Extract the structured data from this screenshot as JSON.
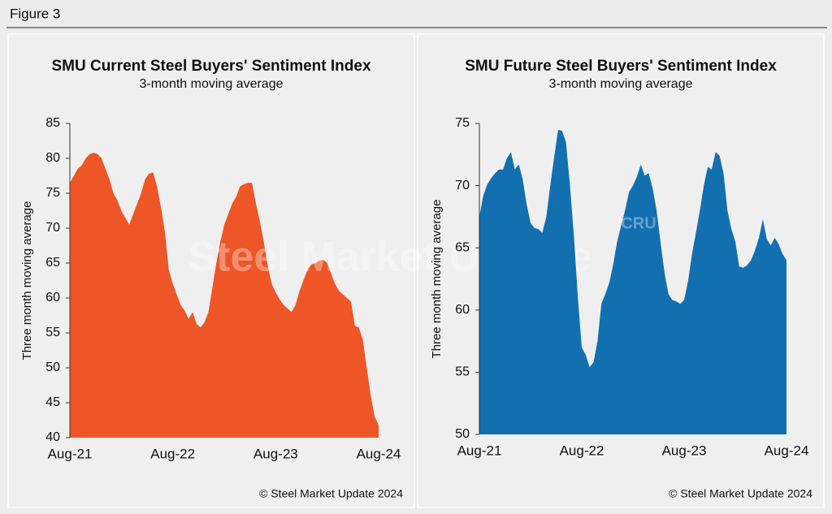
{
  "figure_label": "Figure 3",
  "chart_data": [
    {
      "type": "area",
      "title": "SMU Current Steel Buyers' Sentiment Index",
      "subtitle": "3-month moving average",
      "ylabel": "Three month moving average",
      "source": "© Steel Market Update 2024",
      "watermark": "Steel Market Update",
      "color": "#ee5527",
      "categories": [
        "Aug-21",
        null,
        null,
        null,
        null,
        null,
        null,
        null,
        null,
        null,
        null,
        null,
        null,
        null,
        null,
        null,
        null,
        null,
        null,
        null,
        null,
        null,
        null,
        null,
        null,
        null,
        "Aug-22",
        null,
        null,
        null,
        null,
        null,
        null,
        null,
        null,
        null,
        null,
        null,
        null,
        null,
        null,
        null,
        null,
        null,
        null,
        null,
        null,
        null,
        null,
        null,
        null,
        null,
        "Aug-23",
        null,
        null,
        null,
        null,
        null,
        null,
        null,
        null,
        null,
        null,
        null,
        null,
        null,
        null,
        null,
        null,
        null,
        null,
        null,
        null,
        null,
        null,
        null,
        null,
        null,
        "Aug-24"
      ],
      "values": [
        76.5,
        77.5,
        78.5,
        79,
        80,
        80.6,
        80.8,
        80.6,
        80,
        78.5,
        77,
        75,
        74,
        72.5,
        71.5,
        70.5,
        72,
        73.5,
        75,
        77,
        77.8,
        78,
        76,
        73,
        69.5,
        64,
        62,
        60.5,
        59,
        58.2,
        57,
        58,
        56.3,
        55.8,
        56.5,
        58,
        61.5,
        65,
        68,
        70.5,
        72,
        73.5,
        74.5,
        76,
        76.3,
        76.5,
        76.5,
        73.5,
        71,
        68,
        64.5,
        62,
        60.8,
        59.8,
        59,
        58.5,
        58,
        59,
        61,
        62.5,
        64,
        64.8,
        65,
        65.3,
        65.5,
        65,
        63.5,
        62,
        61,
        60.5,
        60,
        59.5,
        56,
        55.8,
        54,
        50,
        46,
        43,
        41.8
      ],
      "ylim": [
        40,
        85
      ],
      "yticks": [
        40,
        45,
        50,
        55,
        60,
        65,
        70,
        75,
        80,
        85
      ]
    },
    {
      "type": "area",
      "title": "SMU Future Steel Buyers' Sentiment Index",
      "subtitle": "3-month moving average",
      "ylabel": "Three month moving average",
      "source": "© Steel Market Update 2024",
      "watermark": "CRU",
      "color": "#1270b0",
      "categories": [
        "Aug-21",
        null,
        null,
        null,
        null,
        null,
        null,
        null,
        null,
        null,
        null,
        null,
        null,
        null,
        null,
        null,
        null,
        null,
        null,
        null,
        null,
        null,
        null,
        null,
        null,
        null,
        "Aug-22",
        null,
        null,
        null,
        null,
        null,
        null,
        null,
        null,
        null,
        null,
        null,
        null,
        null,
        null,
        null,
        null,
        null,
        null,
        null,
        null,
        null,
        null,
        null,
        null,
        null,
        "Aug-23",
        null,
        null,
        null,
        null,
        null,
        null,
        null,
        null,
        null,
        null,
        null,
        null,
        null,
        null,
        null,
        null,
        null,
        null,
        null,
        null,
        null,
        null,
        null,
        null,
        null,
        "Aug-24"
      ],
      "values": [
        67.5,
        69.2,
        70.1,
        70.6,
        71,
        71.3,
        71.3,
        72.2,
        72.7,
        71.3,
        71.7,
        70.5,
        68.5,
        67,
        66.6,
        66.5,
        66.2,
        67.5,
        70,
        72.3,
        74.5,
        74.4,
        73.5,
        70,
        66,
        61,
        57,
        56.4,
        55.4,
        55.8,
        57.5,
        60.5,
        61.3,
        62.2,
        63.7,
        65.5,
        66.8,
        68,
        69.5,
        70,
        70.7,
        71.7,
        70.8,
        71,
        69.8,
        68,
        65.5,
        63,
        61.3,
        60.8,
        60.7,
        60.5,
        60.8,
        62.3,
        64.5,
        66.2,
        68,
        70,
        71.5,
        71.3,
        72.7,
        72.4,
        71,
        68,
        66.5,
        65.5,
        63.5,
        63.4,
        63.6,
        64,
        64.8,
        65.8,
        67.3,
        65.7,
        65.2,
        65.8,
        65.3,
        64.5,
        64
      ],
      "ylim": [
        50,
        75
      ],
      "yticks": [
        50,
        55,
        60,
        65,
        70,
        75
      ]
    }
  ]
}
